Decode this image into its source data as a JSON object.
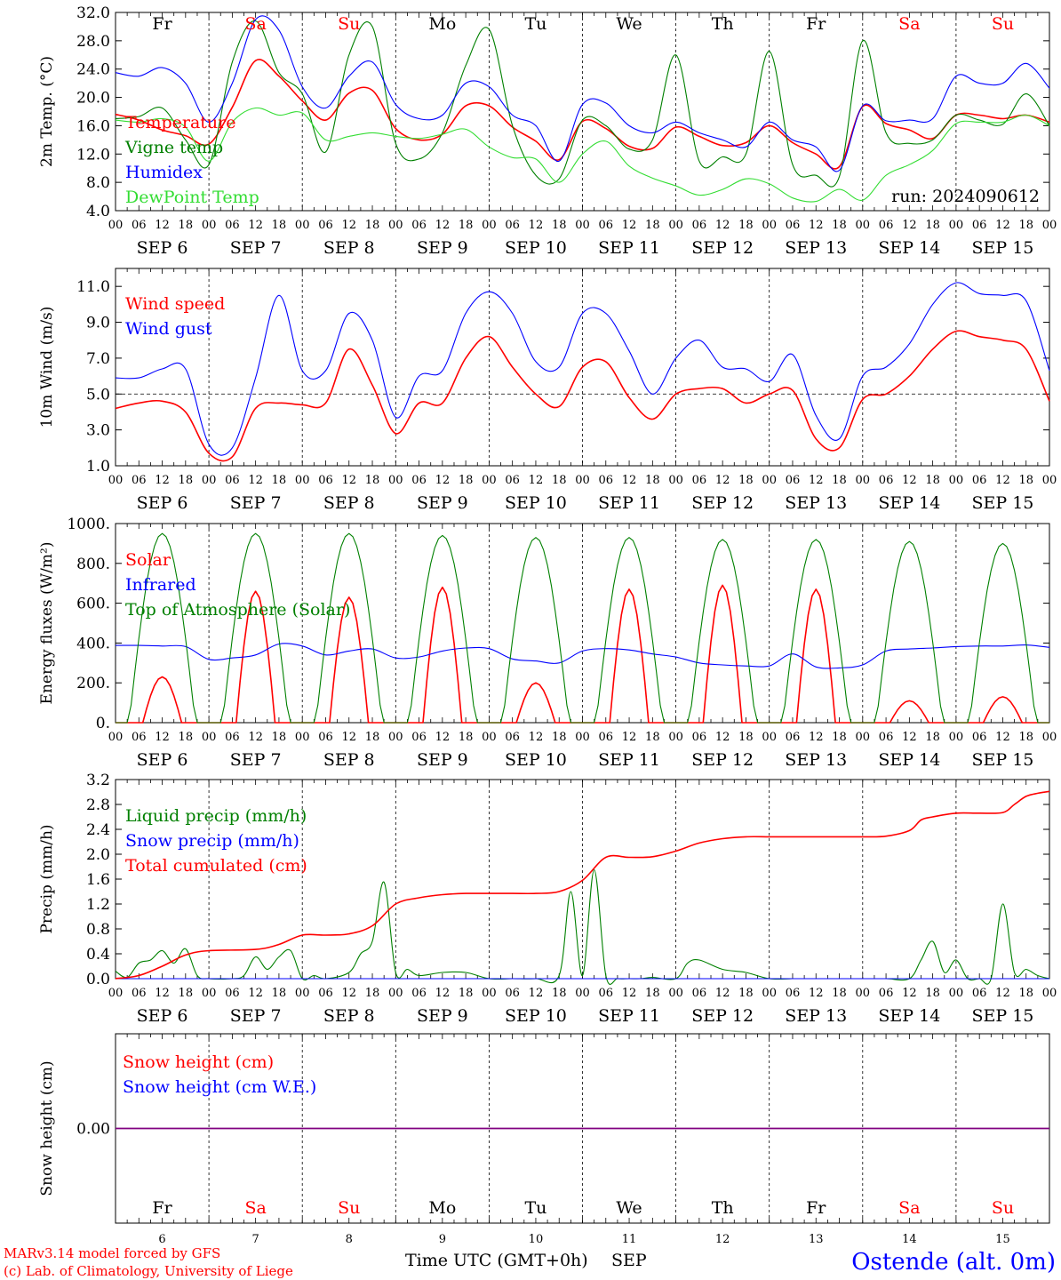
{
  "footer": {
    "credit_line1": "MARv3.14 model forced by GFS",
    "credit_line2": "(c) Lab. of Climatology, University of Liege",
    "xlabel": "Time UTC (GMT+0h)",
    "month": "SEP",
    "station": "Ostende (alt. 0m)"
  },
  "colors": {
    "red": "#ff0000",
    "green": "#008000",
    "blue": "#0000ff",
    "lightgreen": "#33dd33",
    "purple": "#800080",
    "axis": "#000000"
  },
  "days": [
    {
      "wd": "Fr",
      "date": "SEP  6",
      "num": "6",
      "weekend": false
    },
    {
      "wd": "Sa",
      "date": "SEP  7",
      "num": "7",
      "weekend": true
    },
    {
      "wd": "Su",
      "date": "SEP  8",
      "num": "8",
      "weekend": true
    },
    {
      "wd": "Mo",
      "date": "SEP  9",
      "num": "9",
      "weekend": false
    },
    {
      "wd": "Tu",
      "date": "SEP 10",
      "num": "10",
      "weekend": false
    },
    {
      "wd": "We",
      "date": "SEP 11",
      "num": "11",
      "weekend": false
    },
    {
      "wd": "Th",
      "date": "SEP 12",
      "num": "12",
      "weekend": false
    },
    {
      "wd": "Fr",
      "date": "SEP 13",
      "num": "13",
      "weekend": false
    },
    {
      "wd": "Sa",
      "date": "SEP 14",
      "num": "14",
      "weekend": true
    },
    {
      "wd": "Su",
      "date": "SEP 15",
      "num": "15",
      "weekend": true
    }
  ],
  "hour_ticks": [
    "00",
    "06",
    "12",
    "18"
  ],
  "final_hour_tick": "00",
  "chart_data": [
    {
      "type": "line",
      "ylabel": "2m Temp. (°C)",
      "ylim": [
        4,
        32
      ],
      "yticks": [
        "32.0",
        "28.0",
        "24.0",
        "20.0",
        "16.0",
        "12.0",
        "8.0",
        "4.0"
      ],
      "annotation": "run: 2024090612",
      "x_unit": "hours since SEP 6 00 UTC",
      "series": [
        {
          "name": "Temperature",
          "color": "red",
          "x": [
            0,
            6,
            12,
            18,
            24,
            30,
            36,
            42,
            48,
            54,
            60,
            66,
            72,
            78,
            84,
            90,
            96,
            102,
            108,
            114,
            120,
            126,
            132,
            138,
            144,
            150,
            156,
            162,
            168,
            174,
            180,
            186,
            192,
            198,
            204,
            210,
            216,
            222,
            228,
            234,
            240
          ],
          "y": [
            17.6,
            16.8,
            15.4,
            14.6,
            13.4,
            18.6,
            25.2,
            23.0,
            19.5,
            16.8,
            20.6,
            21.0,
            15.6,
            14.0,
            14.8,
            18.8,
            18.8,
            15.8,
            13.8,
            11.2,
            16.6,
            15.6,
            13.1,
            12.8,
            15.8,
            14.5,
            13.2,
            13.6,
            16.0,
            13.6,
            12.0,
            10.2,
            18.7,
            16.3,
            15.4,
            14.2,
            17.5,
            17.5,
            17.0,
            17.5,
            16.5
          ]
        },
        {
          "name": "Vigne temp",
          "color": "green",
          "x": [
            0,
            6,
            12,
            18,
            24,
            30,
            36,
            42,
            48,
            54,
            60,
            66,
            72,
            78,
            84,
            90,
            96,
            102,
            108,
            114,
            120,
            126,
            132,
            138,
            144,
            150,
            156,
            162,
            168,
            174,
            180,
            186,
            192,
            198,
            204,
            210,
            216,
            222,
            228,
            234,
            240
          ],
          "y": [
            17.0,
            17.3,
            18.5,
            14.0,
            10.5,
            25.0,
            30.8,
            23.5,
            20.5,
            12.3,
            26.0,
            30.0,
            13.5,
            11.3,
            15.0,
            24.5,
            29.6,
            16.0,
            9.0,
            8.5,
            16.8,
            16.0,
            12.7,
            14.0,
            26.0,
            11.0,
            11.6,
            12.0,
            26.5,
            10.5,
            9.0,
            8.8,
            28.0,
            15.0,
            13.5,
            14.0,
            17.5,
            16.8,
            16.2,
            20.5,
            16.0
          ]
        },
        {
          "name": "Humidex",
          "color": "blue",
          "x": [
            0,
            6,
            12,
            18,
            24,
            30,
            36,
            42,
            48,
            54,
            60,
            66,
            72,
            78,
            84,
            90,
            96,
            102,
            108,
            114,
            120,
            126,
            132,
            138,
            144,
            150,
            156,
            162,
            168,
            174,
            180,
            186,
            192,
            198,
            204,
            210,
            216,
            222,
            228,
            234,
            240
          ],
          "y": [
            23.5,
            23.0,
            24.2,
            22.0,
            16.5,
            22.0,
            31.0,
            29.5,
            21.5,
            18.5,
            23.0,
            25.0,
            19.0,
            17.0,
            17.5,
            22.0,
            21.5,
            17.5,
            16.0,
            11.0,
            19.0,
            19.2,
            16.0,
            15.0,
            16.5,
            15.0,
            14.0,
            13.0,
            16.5,
            14.0,
            13.0,
            9.7,
            18.8,
            16.7,
            16.8,
            17.0,
            23.0,
            22.0,
            22.0,
            24.8,
            21.3
          ]
        },
        {
          "name": "DewPoint Temp",
          "color": "lightgreen",
          "x": [
            0,
            6,
            12,
            18,
            24,
            30,
            36,
            42,
            48,
            54,
            60,
            66,
            72,
            78,
            84,
            90,
            96,
            102,
            108,
            114,
            120,
            126,
            132,
            138,
            144,
            150,
            156,
            162,
            168,
            174,
            180,
            186,
            192,
            198,
            204,
            210,
            216,
            222,
            228,
            234,
            240
          ],
          "y": [
            16.8,
            16.5,
            17.0,
            15.8,
            11.0,
            16.5,
            18.5,
            17.5,
            17.8,
            14.0,
            14.5,
            15.0,
            14.5,
            14.2,
            14.8,
            15.5,
            13.0,
            11.5,
            11.3,
            8.0,
            12.0,
            13.8,
            10.3,
            8.6,
            7.5,
            6.2,
            7.0,
            8.5,
            7.8,
            5.8,
            5.3,
            7.0,
            5.5,
            9.0,
            10.5,
            12.5,
            16.3,
            16.5,
            16.5,
            17.5,
            16.0
          ]
        }
      ]
    },
    {
      "type": "line",
      "ylabel": "10m Wind (m/s)",
      "ylim": [
        1,
        12
      ],
      "yticks": [
        "11.0",
        "9.0",
        "7.0",
        "5.0",
        "3.0",
        "1.0"
      ],
      "reference_line": 5.0,
      "x_unit": "hours since SEP 6 00 UTC",
      "series": [
        {
          "name": "Wind speed",
          "color": "red",
          "x": [
            0,
            6,
            12,
            18,
            24,
            30,
            36,
            42,
            48,
            54,
            60,
            66,
            72,
            78,
            84,
            90,
            96,
            102,
            108,
            114,
            120,
            126,
            132,
            138,
            144,
            150,
            156,
            162,
            168,
            174,
            180,
            186,
            192,
            198,
            204,
            210,
            216,
            222,
            228,
            234,
            240
          ],
          "y": [
            4.2,
            4.5,
            4.6,
            4.0,
            1.7,
            1.5,
            4.2,
            4.5,
            4.4,
            4.5,
            7.5,
            5.5,
            2.8,
            4.5,
            4.5,
            7.0,
            8.2,
            6.5,
            5.0,
            4.3,
            6.5,
            6.8,
            4.8,
            3.6,
            5.0,
            5.3,
            5.3,
            4.5,
            5.0,
            5.2,
            2.5,
            2.0,
            4.7,
            5.0,
            6.0,
            7.5,
            8.5,
            8.2,
            8.0,
            7.5,
            4.6
          ]
        },
        {
          "name": "Wind gust",
          "color": "blue",
          "x": [
            0,
            6,
            12,
            18,
            24,
            30,
            36,
            42,
            48,
            54,
            60,
            66,
            72,
            78,
            84,
            90,
            96,
            102,
            108,
            114,
            120,
            126,
            132,
            138,
            144,
            150,
            156,
            162,
            168,
            174,
            180,
            186,
            192,
            198,
            204,
            210,
            216,
            222,
            228,
            234,
            240
          ],
          "y": [
            5.9,
            5.9,
            6.4,
            6.4,
            2.2,
            2.0,
            5.9,
            10.5,
            6.3,
            6.3,
            9.5,
            8.0,
            3.7,
            6.0,
            6.3,
            9.5,
            10.7,
            9.5,
            6.8,
            6.5,
            9.5,
            9.5,
            7.4,
            5.0,
            7.0,
            8.0,
            6.5,
            6.4,
            5.7,
            7.2,
            3.8,
            2.5,
            6.0,
            6.5,
            7.8,
            10.0,
            11.2,
            10.6,
            10.5,
            10.2,
            6.3
          ]
        }
      ]
    },
    {
      "type": "line",
      "ylabel": "Energy fluxes (W/m²)",
      "ylim": [
        0,
        1000
      ],
      "yticks": [
        "1000.",
        "800.",
        "600.",
        "400.",
        "200.",
        "0."
      ],
      "x_unit": "hours since SEP 6 00 UTC",
      "series": [
        {
          "name": "Solar",
          "color": "red",
          "daily_peak_hour": 12,
          "daily_peaks": [
            230,
            660,
            630,
            680,
            200,
            670,
            690,
            670,
            110,
            130
          ]
        },
        {
          "name": "Infrared",
          "color": "blue",
          "x": [
            0,
            6,
            12,
            18,
            24,
            30,
            36,
            42,
            48,
            54,
            60,
            66,
            72,
            78,
            84,
            90,
            96,
            102,
            108,
            114,
            120,
            126,
            132,
            138,
            144,
            150,
            156,
            162,
            168,
            174,
            180,
            186,
            192,
            198,
            204,
            210,
            216,
            222,
            228,
            234,
            240
          ],
          "y": [
            388,
            388,
            385,
            382,
            318,
            325,
            340,
            395,
            385,
            340,
            360,
            370,
            325,
            330,
            360,
            375,
            372,
            320,
            310,
            300,
            360,
            372,
            365,
            345,
            330,
            300,
            290,
            285,
            285,
            345,
            280,
            275,
            290,
            360,
            370,
            375,
            382,
            385,
            385,
            390,
            378
          ]
        },
        {
          "name": "Top of Atmosphere (Solar)",
          "color": "green",
          "daily_peak_hour": 12,
          "daily_peaks": [
            950,
            950,
            950,
            940,
            930,
            930,
            920,
            920,
            910,
            900
          ]
        }
      ]
    },
    {
      "type": "line",
      "ylabel": "Precip (mm/h)",
      "ylim": [
        0,
        3.2
      ],
      "yticks": [
        "3.2",
        "2.8",
        "2.4",
        "2.0",
        "1.6",
        "1.2",
        "0.8",
        "0.4",
        "0.0"
      ],
      "x_unit": "hours since SEP 6 00 UTC",
      "series": [
        {
          "name": "Liquid precip (mm/h)",
          "color": "green",
          "x": [
            0,
            3,
            6,
            9,
            12,
            15,
            18,
            21,
            24,
            30,
            33,
            36,
            39,
            42,
            45,
            48,
            51,
            54,
            60,
            63,
            66,
            69,
            72,
            75,
            78,
            84,
            90,
            96,
            102,
            108,
            114,
            117,
            120,
            123,
            126,
            129,
            132,
            135,
            138,
            144,
            147,
            150,
            156,
            162,
            168,
            174,
            180,
            186,
            192,
            198,
            204,
            207,
            210,
            213,
            216,
            219,
            222,
            225,
            228,
            231,
            234,
            237,
            240
          ],
          "y": [
            0.12,
            0.02,
            0.25,
            0.3,
            0.45,
            0.25,
            0.48,
            0.05,
            0.0,
            0.0,
            0.05,
            0.35,
            0.15,
            0.35,
            0.45,
            0.0,
            0.05,
            0.0,
            0.1,
            0.4,
            0.6,
            1.55,
            0.1,
            0.15,
            0.05,
            0.1,
            0.1,
            0.0,
            0.0,
            0.0,
            0.05,
            1.4,
            0.05,
            1.75,
            0.05,
            0.0,
            0.0,
            0.0,
            0.02,
            0.0,
            0.25,
            0.3,
            0.15,
            0.1,
            0.0,
            0.0,
            0.0,
            0.0,
            0.0,
            0.0,
            0.0,
            0.3,
            0.6,
            0.1,
            0.3,
            0.0,
            0.0,
            0.0,
            1.2,
            0.1,
            0.15,
            0.05,
            0.0
          ]
        },
        {
          "name": "Snow precip (mm/h)",
          "color": "blue",
          "x": [
            0,
            240
          ],
          "y": [
            0,
            0
          ]
        },
        {
          "name": "Total cumulated (cm)",
          "color": "red",
          "x": [
            0,
            6,
            12,
            18,
            24,
            36,
            42,
            48,
            54,
            60,
            66,
            72,
            78,
            84,
            90,
            96,
            102,
            108,
            114,
            120,
            126,
            132,
            138,
            144,
            150,
            156,
            162,
            168,
            174,
            180,
            186,
            192,
            198,
            204,
            207,
            210,
            216,
            222,
            228,
            231,
            234,
            237,
            240
          ],
          "y": [
            0.0,
            0.05,
            0.2,
            0.38,
            0.45,
            0.47,
            0.55,
            0.7,
            0.7,
            0.72,
            0.85,
            1.2,
            1.3,
            1.35,
            1.37,
            1.37,
            1.37,
            1.37,
            1.4,
            1.58,
            1.95,
            1.95,
            1.96,
            2.05,
            2.18,
            2.25,
            2.28,
            2.28,
            2.28,
            2.28,
            2.28,
            2.28,
            2.29,
            2.38,
            2.55,
            2.6,
            2.66,
            2.66,
            2.67,
            2.8,
            2.93,
            2.98,
            3.01
          ]
        }
      ]
    },
    {
      "type": "line",
      "ylabel": "Snow height (cm)",
      "yticks": [
        "0.00"
      ],
      "x_unit": "hours since SEP 6 00 UTC",
      "series": [
        {
          "name": "Snow height (cm)",
          "color": "red",
          "x": [
            0,
            240
          ],
          "y": [
            0,
            0
          ]
        },
        {
          "name": "Snow height (cm W.E.)",
          "color": "blue",
          "x": [
            0,
            240
          ],
          "y": [
            0,
            0
          ]
        }
      ]
    }
  ]
}
